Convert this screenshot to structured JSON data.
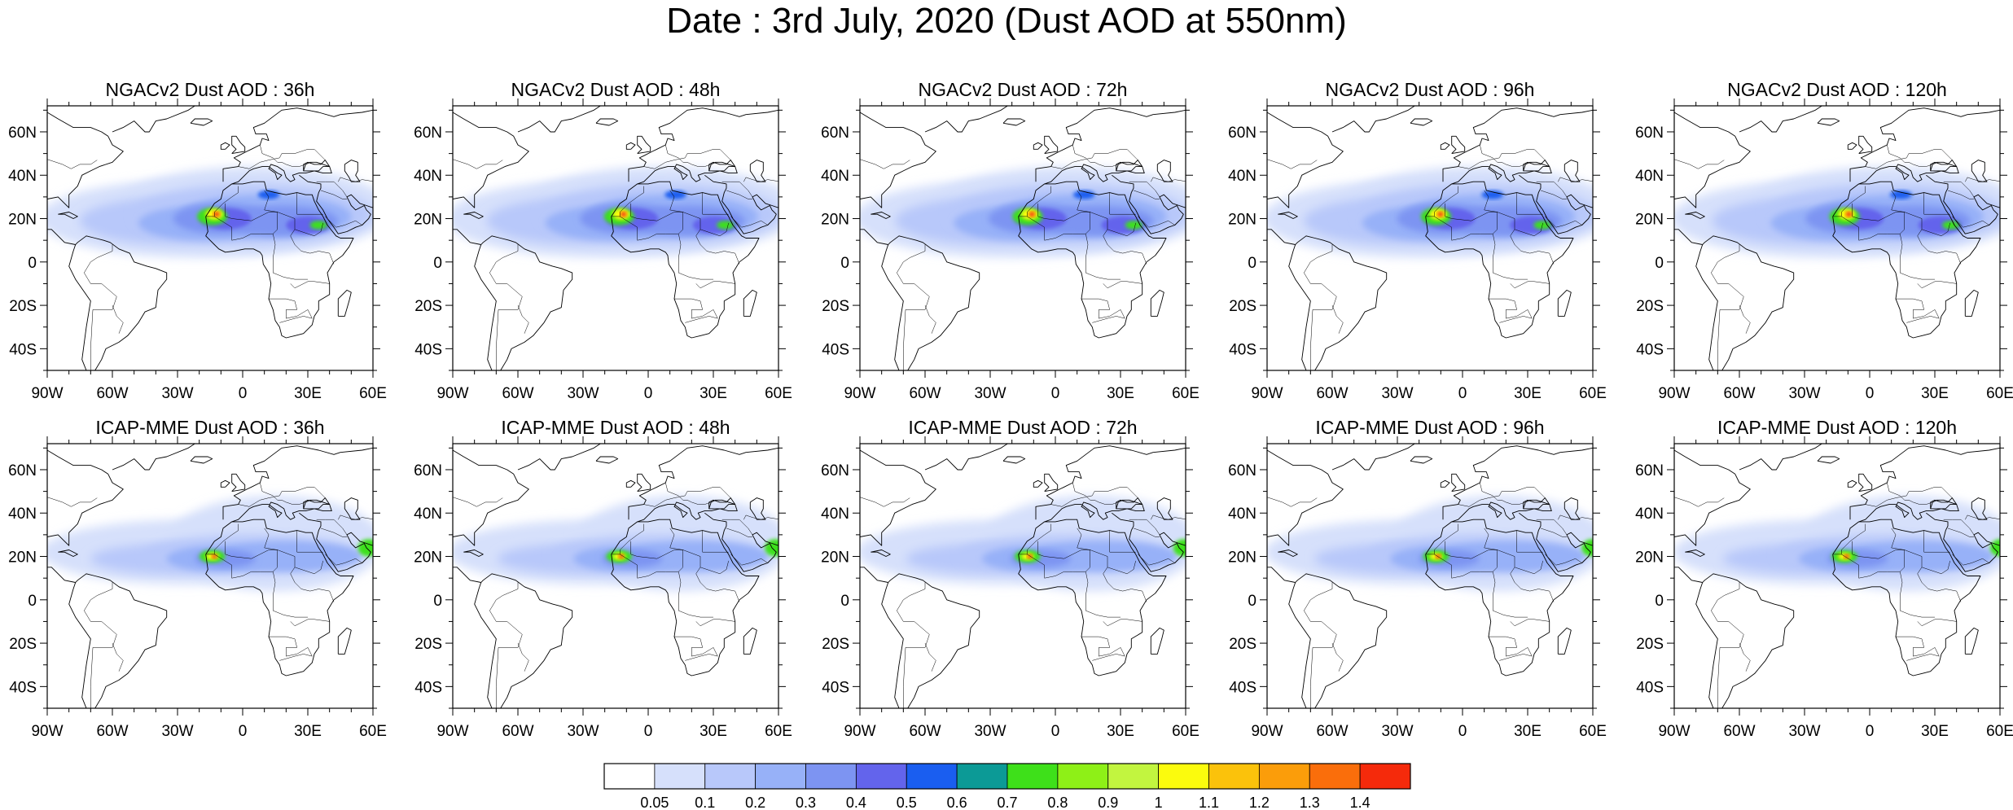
{
  "title": "Date : 3rd July, 2020 (Dust AOD at 550nm)",
  "axes": {
    "lon_ticks": [
      "90W",
      "60W",
      "30W",
      "0",
      "30E",
      "60E"
    ],
    "lat_ticks": [
      "60N",
      "40N",
      "20N",
      "0",
      "20S",
      "40S"
    ]
  },
  "panels": [
    {
      "title": "NGACv2 Dust AOD : 36h",
      "model": "NGACv2",
      "lead_hours": 36
    },
    {
      "title": "NGACv2 Dust AOD : 48h",
      "model": "NGACv2",
      "lead_hours": 48
    },
    {
      "title": "NGACv2 Dust AOD : 72h",
      "model": "NGACv2",
      "lead_hours": 72
    },
    {
      "title": "NGACv2 Dust AOD : 96h",
      "model": "NGACv2",
      "lead_hours": 96
    },
    {
      "title": "NGACv2 Dust AOD : 120h",
      "model": "NGACv2",
      "lead_hours": 120
    },
    {
      "title": "ICAP-MME Dust AOD : 36h",
      "model": "ICAP-MME",
      "lead_hours": 36
    },
    {
      "title": "ICAP-MME Dust AOD : 48h",
      "model": "ICAP-MME",
      "lead_hours": 48
    },
    {
      "title": "ICAP-MME Dust AOD : 72h",
      "model": "ICAP-MME",
      "lead_hours": 72
    },
    {
      "title": "ICAP-MME Dust AOD : 96h",
      "model": "ICAP-MME",
      "lead_hours": 96
    },
    {
      "title": "ICAP-MME Dust AOD : 120h",
      "model": "ICAP-MME",
      "lead_hours": 120
    }
  ],
  "colorbar": {
    "labels": [
      "0.05",
      "0.1",
      "0.2",
      "0.3",
      "0.4",
      "0.5",
      "0.6",
      "0.7",
      "0.8",
      "0.9",
      "1",
      "1.1",
      "1.2",
      "1.3",
      "1.4"
    ],
    "colors": [
      "#ffffff",
      "#d6e0fb",
      "#b8c8fa",
      "#97b1f8",
      "#7d94f2",
      "#6364ec",
      "#1a5ef0",
      "#0c9a96",
      "#3ee01a",
      "#8ef017",
      "#c2f53f",
      "#fbfb0d",
      "#fbc20b",
      "#fb9d0a",
      "#fa6e0b",
      "#f52a0b"
    ]
  }
}
